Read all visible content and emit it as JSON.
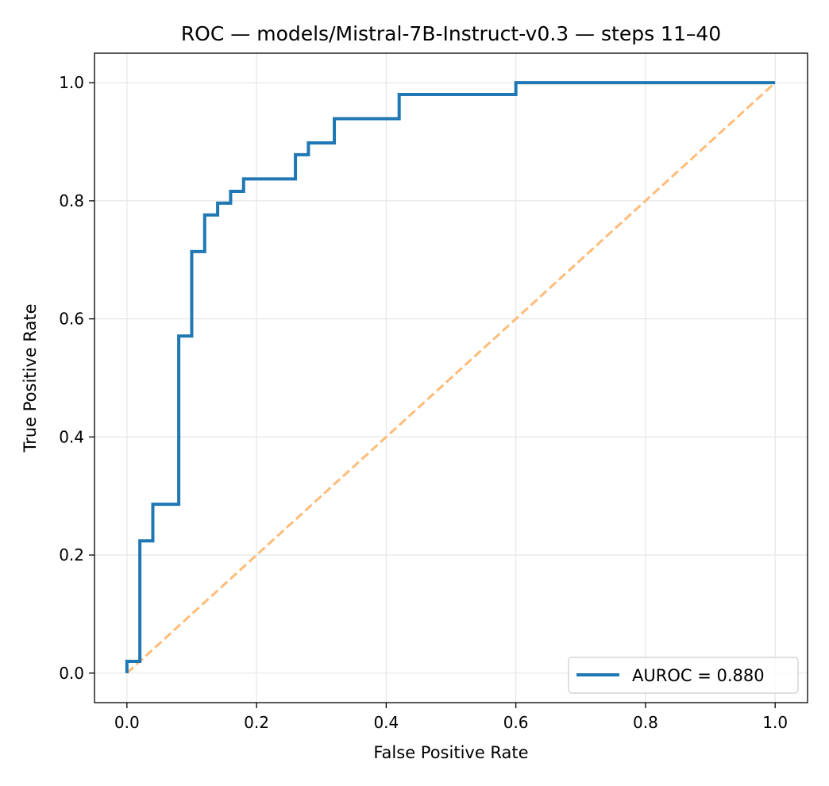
{
  "chart_data": {
    "type": "line",
    "title": "ROC — models/Mistral-7B-Instruct-v0.3 — steps 11–40",
    "xlabel": "False Positive Rate",
    "ylabel": "True Positive Rate",
    "xlim": [
      -0.05,
      1.05
    ],
    "ylim": [
      -0.05,
      1.05
    ],
    "xticks": [
      0.0,
      0.2,
      0.4,
      0.6,
      0.8,
      1.0
    ],
    "yticks": [
      0.0,
      0.2,
      0.4,
      0.6,
      0.8,
      1.0
    ],
    "xtick_labels": [
      "0.0",
      "0.2",
      "0.4",
      "0.6",
      "0.8",
      "1.0"
    ],
    "ytick_labels": [
      "0.0",
      "0.2",
      "0.4",
      "0.6",
      "0.8",
      "1.0"
    ],
    "grid": true,
    "legend": {
      "placement": "lower-right"
    },
    "series": [
      {
        "name": "AUROC = 0.880",
        "style": "solid",
        "color": "#1f77b4",
        "x": [
          0.0,
          0.0,
          0.02,
          0.02,
          0.04,
          0.04,
          0.08,
          0.08,
          0.1,
          0.1,
          0.12,
          0.12,
          0.14,
          0.14,
          0.16,
          0.16,
          0.18,
          0.18,
          0.26,
          0.26,
          0.28,
          0.28,
          0.32,
          0.32,
          0.42,
          0.42,
          0.6,
          0.6,
          1.0
        ],
        "y": [
          0.0,
          0.02,
          0.02,
          0.224,
          0.224,
          0.286,
          0.286,
          0.571,
          0.571,
          0.714,
          0.714,
          0.776,
          0.776,
          0.796,
          0.796,
          0.816,
          0.816,
          0.837,
          0.837,
          0.878,
          0.878,
          0.898,
          0.898,
          0.939,
          0.939,
          0.98,
          0.98,
          1.0,
          1.0
        ]
      },
      {
        "style": "dashed",
        "color": "#ffbb78",
        "x": [
          0.0,
          1.0
        ],
        "y": [
          0.0,
          1.0
        ]
      }
    ]
  }
}
